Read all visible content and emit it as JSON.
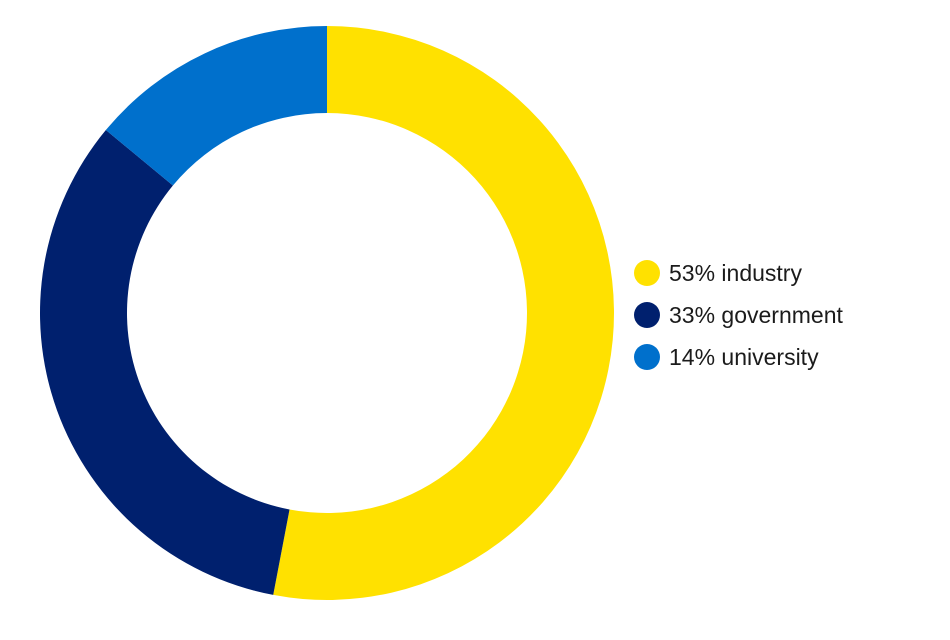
{
  "chart_data": {
    "type": "pie",
    "style": "donut",
    "categories": [
      "industry",
      "government",
      "university"
    ],
    "values": [
      53,
      33,
      14
    ],
    "unit": "%",
    "colors": [
      "#FFE100",
      "#00206E",
      "#0070CC"
    ],
    "legend_labels": [
      "53% industry",
      "33% government",
      "14% university"
    ],
    "legend_position": "right",
    "start_angle": "top",
    "direction": "clockwise"
  }
}
